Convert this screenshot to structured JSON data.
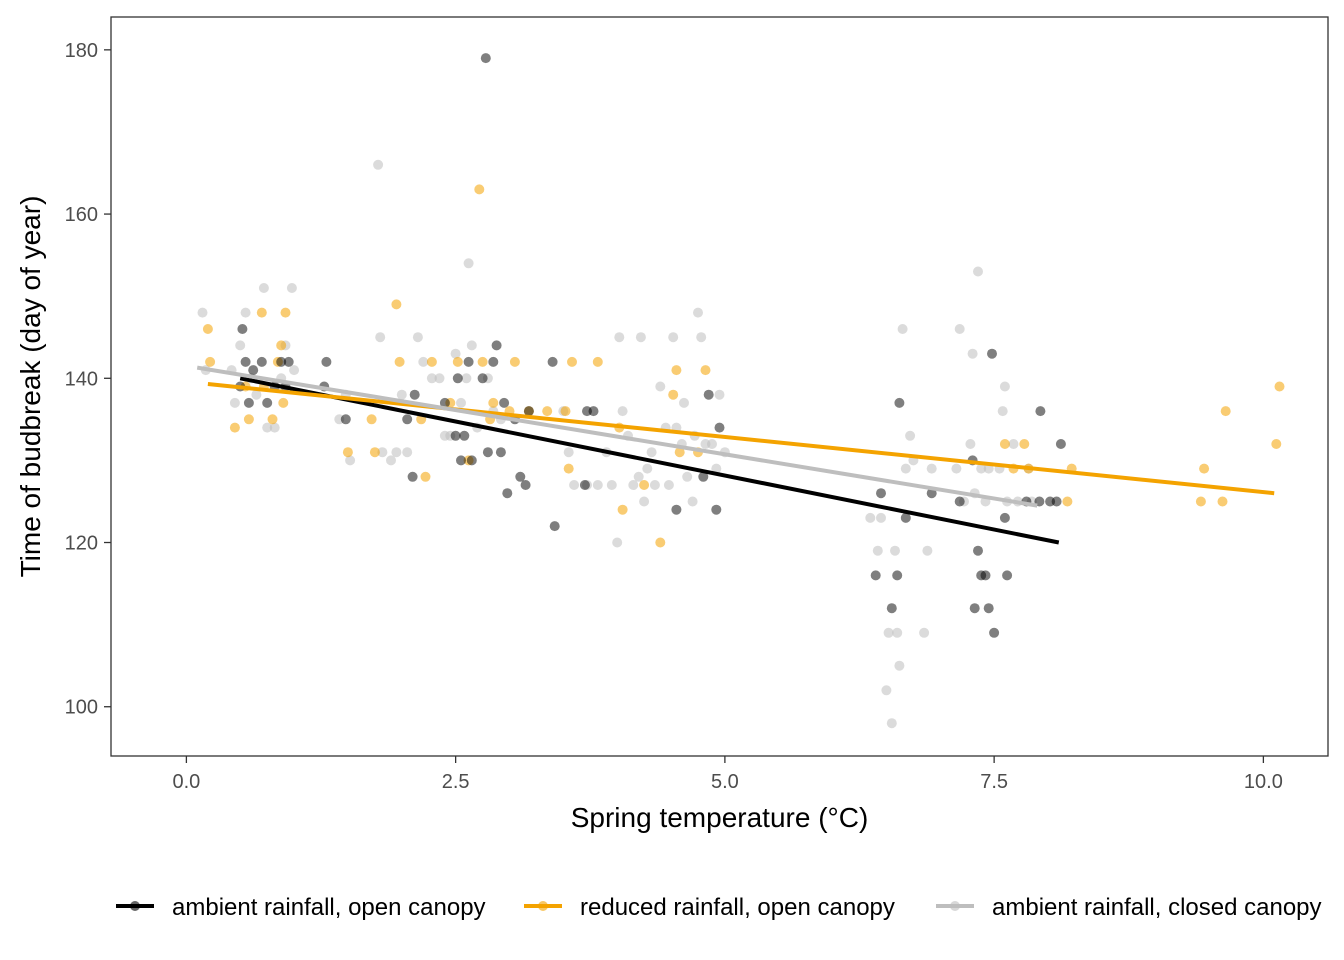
{
  "chart_data": {
    "type": "scatter",
    "xlabel": "Spring temperature (°C)",
    "ylabel": "Time of budbreak (day of year)",
    "xlim": [
      -0.7,
      10.6
    ],
    "ylim": [
      94,
      184
    ],
    "x_ticks": [
      0.0,
      2.5,
      5.0,
      7.5,
      10.0
    ],
    "x_tick_labels": [
      "0.0",
      "2.5",
      "5.0",
      "7.5",
      "10.0"
    ],
    "y_ticks": [
      100,
      120,
      140,
      160,
      180
    ],
    "y_tick_labels": [
      "100",
      "120",
      "140",
      "160",
      "180"
    ],
    "grid": false,
    "legend_position": "bottom",
    "series": [
      {
        "name": "ambient rainfall, open canopy",
        "color": "#000000",
        "trend": {
          "x": [
            0.5,
            8.1
          ],
          "y": [
            140.0,
            120.0
          ]
        },
        "points": [
          [
            0.5,
            139
          ],
          [
            0.52,
            146
          ],
          [
            0.55,
            142
          ],
          [
            0.58,
            137
          ],
          [
            0.62,
            141
          ],
          [
            0.7,
            142
          ],
          [
            0.75,
            137
          ],
          [
            0.82,
            139
          ],
          [
            0.88,
            142
          ],
          [
            0.92,
            139
          ],
          [
            0.95,
            142
          ],
          [
            1.28,
            139
          ],
          [
            1.3,
            142
          ],
          [
            1.48,
            135
          ],
          [
            2.05,
            135
          ],
          [
            2.1,
            128
          ],
          [
            2.12,
            138
          ],
          [
            2.4,
            137
          ],
          [
            2.5,
            133
          ],
          [
            2.52,
            140
          ],
          [
            2.55,
            130
          ],
          [
            2.58,
            133
          ],
          [
            2.62,
            142
          ],
          [
            2.65,
            130
          ],
          [
            2.75,
            140
          ],
          [
            2.78,
            179
          ],
          [
            2.8,
            131
          ],
          [
            2.85,
            142
          ],
          [
            2.88,
            144
          ],
          [
            2.92,
            131
          ],
          [
            2.95,
            137
          ],
          [
            2.98,
            126
          ],
          [
            3.05,
            135
          ],
          [
            3.1,
            128
          ],
          [
            3.15,
            127
          ],
          [
            3.18,
            136
          ],
          [
            3.4,
            142
          ],
          [
            3.42,
            122
          ],
          [
            3.7,
            127
          ],
          [
            3.72,
            136
          ],
          [
            3.78,
            136
          ],
          [
            4.55,
            124
          ],
          [
            4.8,
            128
          ],
          [
            4.85,
            138
          ],
          [
            4.92,
            124
          ],
          [
            4.95,
            134
          ],
          [
            6.4,
            116
          ],
          [
            6.45,
            126
          ],
          [
            6.55,
            112
          ],
          [
            6.6,
            116
          ],
          [
            6.62,
            137
          ],
          [
            6.68,
            123
          ],
          [
            6.92,
            126
          ],
          [
            7.18,
            125
          ],
          [
            7.3,
            130
          ],
          [
            7.32,
            112
          ],
          [
            7.35,
            119
          ],
          [
            7.38,
            116
          ],
          [
            7.42,
            116
          ],
          [
            7.45,
            112
          ],
          [
            7.48,
            143
          ],
          [
            7.5,
            109
          ],
          [
            7.6,
            123
          ],
          [
            7.62,
            116
          ],
          [
            7.8,
            125
          ],
          [
            7.92,
            125
          ],
          [
            8.02,
            125
          ],
          [
            8.08,
            125
          ],
          [
            8.12,
            132
          ],
          [
            7.93,
            136
          ]
        ]
      },
      {
        "name": "reduced rainfall, open canopy",
        "color": "#f4a300",
        "trend": {
          "x": [
            0.2,
            10.1
          ],
          "y": [
            139.3,
            126.0
          ]
        },
        "points": [
          [
            0.2,
            146
          ],
          [
            0.22,
            142
          ],
          [
            0.45,
            134
          ],
          [
            0.55,
            139
          ],
          [
            0.58,
            135
          ],
          [
            0.7,
            148
          ],
          [
            0.72,
            139
          ],
          [
            0.8,
            135
          ],
          [
            0.85,
            142
          ],
          [
            0.88,
            144
          ],
          [
            0.9,
            137
          ],
          [
            0.92,
            148
          ],
          [
            1.5,
            131
          ],
          [
            1.72,
            135
          ],
          [
            1.75,
            131
          ],
          [
            1.95,
            149
          ],
          [
            1.98,
            142
          ],
          [
            2.18,
            135
          ],
          [
            2.22,
            128
          ],
          [
            2.28,
            142
          ],
          [
            2.45,
            137
          ],
          [
            2.52,
            142
          ],
          [
            2.62,
            130
          ],
          [
            2.72,
            163
          ],
          [
            2.75,
            142
          ],
          [
            2.82,
            135
          ],
          [
            2.85,
            137
          ],
          [
            3.0,
            136
          ],
          [
            3.05,
            142
          ],
          [
            3.18,
            136
          ],
          [
            3.35,
            136
          ],
          [
            3.52,
            136
          ],
          [
            3.55,
            129
          ],
          [
            3.58,
            142
          ],
          [
            3.82,
            142
          ],
          [
            4.02,
            134
          ],
          [
            4.05,
            124
          ],
          [
            4.25,
            127
          ],
          [
            4.4,
            120
          ],
          [
            4.52,
            138
          ],
          [
            4.55,
            141
          ],
          [
            4.58,
            131
          ],
          [
            4.75,
            131
          ],
          [
            4.82,
            141
          ],
          [
            7.6,
            132
          ],
          [
            7.68,
            129
          ],
          [
            7.78,
            132
          ],
          [
            7.82,
            129
          ],
          [
            8.18,
            125
          ],
          [
            8.22,
            129
          ],
          [
            9.42,
            125
          ],
          [
            9.45,
            129
          ],
          [
            9.62,
            125
          ],
          [
            9.65,
            136
          ],
          [
            10.12,
            132
          ],
          [
            10.15,
            139
          ]
        ]
      },
      {
        "name": "ambient rainfall, closed canopy",
        "color": "#bebebe",
        "trend": {
          "x": [
            0.1,
            7.9
          ],
          "y": [
            141.3,
            124.5
          ]
        },
        "points": [
          [
            0.15,
            148
          ],
          [
            0.18,
            141
          ],
          [
            0.42,
            141
          ],
          [
            0.45,
            137
          ],
          [
            0.5,
            144
          ],
          [
            0.55,
            148
          ],
          [
            0.6,
            140
          ],
          [
            0.65,
            138
          ],
          [
            0.72,
            151
          ],
          [
            0.75,
            134
          ],
          [
            0.82,
            134
          ],
          [
            0.88,
            140
          ],
          [
            0.92,
            144
          ],
          [
            0.98,
            151
          ],
          [
            1.0,
            141
          ],
          [
            1.42,
            135
          ],
          [
            1.48,
            138
          ],
          [
            1.52,
            130
          ],
          [
            1.78,
            166
          ],
          [
            1.8,
            145
          ],
          [
            1.82,
            131
          ],
          [
            1.9,
            130
          ],
          [
            1.95,
            131
          ],
          [
            2.0,
            138
          ],
          [
            2.05,
            131
          ],
          [
            2.15,
            145
          ],
          [
            2.2,
            142
          ],
          [
            2.28,
            140
          ],
          [
            2.35,
            140
          ],
          [
            2.4,
            133
          ],
          [
            2.45,
            133
          ],
          [
            2.5,
            143
          ],
          [
            2.55,
            137
          ],
          [
            2.6,
            140
          ],
          [
            2.62,
            154
          ],
          [
            2.65,
            144
          ],
          [
            2.7,
            134
          ],
          [
            2.8,
            140
          ],
          [
            2.85,
            136
          ],
          [
            2.92,
            135
          ],
          [
            3.5,
            136
          ],
          [
            3.55,
            131
          ],
          [
            3.6,
            127
          ],
          [
            3.72,
            127
          ],
          [
            3.82,
            127
          ],
          [
            3.9,
            131
          ],
          [
            3.95,
            127
          ],
          [
            4.0,
            120
          ],
          [
            4.02,
            145
          ],
          [
            4.05,
            136
          ],
          [
            4.1,
            133
          ],
          [
            4.15,
            127
          ],
          [
            4.2,
            128
          ],
          [
            4.22,
            145
          ],
          [
            4.25,
            125
          ],
          [
            4.28,
            129
          ],
          [
            4.32,
            131
          ],
          [
            4.35,
            127
          ],
          [
            4.4,
            139
          ],
          [
            4.45,
            134
          ],
          [
            4.48,
            127
          ],
          [
            4.52,
            145
          ],
          [
            4.55,
            134
          ],
          [
            4.6,
            132
          ],
          [
            4.62,
            137
          ],
          [
            4.65,
            128
          ],
          [
            4.7,
            125
          ],
          [
            4.72,
            133
          ],
          [
            4.75,
            148
          ],
          [
            4.78,
            145
          ],
          [
            4.82,
            132
          ],
          [
            4.88,
            132
          ],
          [
            4.92,
            129
          ],
          [
            4.95,
            138
          ],
          [
            5.0,
            131
          ],
          [
            6.35,
            123
          ],
          [
            6.42,
            119
          ],
          [
            6.45,
            123
          ],
          [
            6.5,
            102
          ],
          [
            6.52,
            109
          ],
          [
            6.55,
            98
          ],
          [
            6.58,
            119
          ],
          [
            6.6,
            109
          ],
          [
            6.62,
            105
          ],
          [
            6.65,
            146
          ],
          [
            6.68,
            129
          ],
          [
            6.72,
            133
          ],
          [
            6.75,
            130
          ],
          [
            6.85,
            109
          ],
          [
            6.88,
            119
          ],
          [
            6.92,
            129
          ],
          [
            7.15,
            129
          ],
          [
            7.18,
            146
          ],
          [
            7.22,
            125
          ],
          [
            7.28,
            132
          ],
          [
            7.3,
            143
          ],
          [
            7.32,
            126
          ],
          [
            7.35,
            153
          ],
          [
            7.38,
            129
          ],
          [
            7.42,
            125
          ],
          [
            7.45,
            129
          ],
          [
            7.55,
            129
          ],
          [
            7.58,
            136
          ],
          [
            7.6,
            139
          ],
          [
            7.62,
            125
          ],
          [
            7.68,
            132
          ],
          [
            7.72,
            125
          ],
          [
            7.82,
            129
          ],
          [
            7.85,
            125
          ]
        ]
      }
    ]
  }
}
